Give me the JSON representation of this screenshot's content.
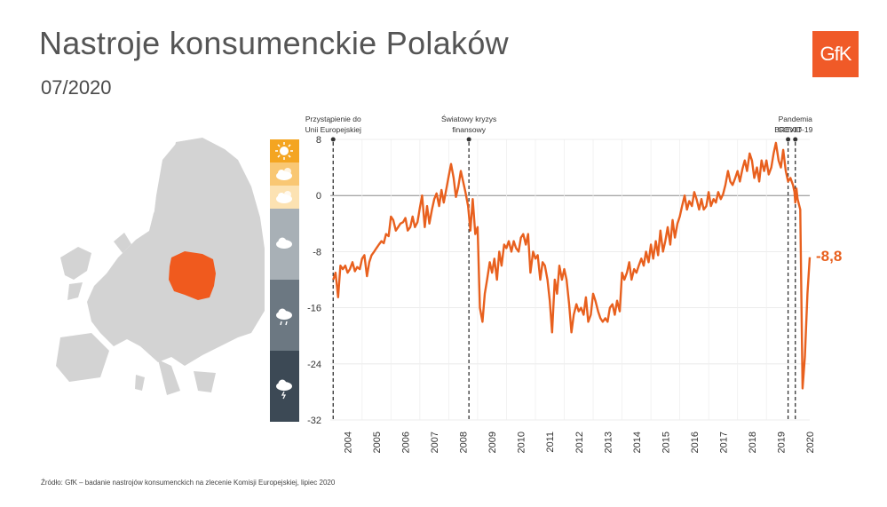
{
  "header": {
    "title": "Nastroje konsumenckie Polaków",
    "subtitle": "07/2020",
    "logo_text": "GfK"
  },
  "source": "Źródło: GfK – badanie nastrojów konsumenckich na zlecenie Komisji Europejskiej, lipiec 2020",
  "colors": {
    "line": "#e8601e",
    "poland": "#f05a1e",
    "europe": "#d3d3d3",
    "accent": "#f05a28"
  },
  "mood_scale": [
    {
      "icon": "sun-icon",
      "color": "#f4a521"
    },
    {
      "icon": "sun-cloud-icon",
      "color": "#f9c773"
    },
    {
      "icon": "partly-cloudy-icon",
      "color": "#fce2b2"
    },
    {
      "icon": "cloud-icon",
      "color": "#a8b0b6"
    },
    {
      "icon": "rain-cloud-icon",
      "color": "#6c7882"
    },
    {
      "icon": "storm-cloud-icon",
      "color": "#3c4955"
    }
  ],
  "final_value_label": "-8,8",
  "chart_data": {
    "type": "line",
    "title": "Nastroje konsumenckie Polaków",
    "ylim": [
      -32,
      8
    ],
    "yticks": [
      "8",
      "0",
      "-8",
      "-16",
      "-24",
      "-32"
    ],
    "xlim": [
      2003.9,
      2020.5
    ],
    "xticks": [
      "2004",
      "2005",
      "2006",
      "2007",
      "2008",
      "2009",
      "2010",
      "2011",
      "2012",
      "2013",
      "2014",
      "2015",
      "2016",
      "2017",
      "2018",
      "2019",
      "2020"
    ],
    "grid": true,
    "events": [
      {
        "x": 2004.0,
        "label": [
          "Przystąpienie do",
          "Unii Europejskiej"
        ]
      },
      {
        "x": 2008.7,
        "label": [
          "Światowy kryzys",
          "finansowy"
        ]
      },
      {
        "x": 2019.75,
        "label": [
          "BREXIT"
        ]
      },
      {
        "x": 2020.0,
        "label": [
          "Pandemia",
          "COVID-19"
        ]
      }
    ],
    "series": [
      {
        "values": [
          [
            2004.0,
            -12
          ],
          [
            2004.08,
            -11
          ],
          [
            2004.17,
            -14.5
          ],
          [
            2004.25,
            -10
          ],
          [
            2004.33,
            -10.5
          ],
          [
            2004.42,
            -10
          ],
          [
            2004.5,
            -11
          ],
          [
            2004.58,
            -10.5
          ],
          [
            2004.67,
            -9.5
          ],
          [
            2004.75,
            -10.8
          ],
          [
            2004.83,
            -10.2
          ],
          [
            2004.92,
            -10.5
          ],
          [
            2005.0,
            -9
          ],
          [
            2005.08,
            -8.5
          ],
          [
            2005.17,
            -11.5
          ],
          [
            2005.25,
            -9.5
          ],
          [
            2005.33,
            -8.5
          ],
          [
            2005.42,
            -8
          ],
          [
            2005.5,
            -7.5
          ],
          [
            2005.58,
            -7
          ],
          [
            2005.67,
            -6.5
          ],
          [
            2005.75,
            -6.8
          ],
          [
            2005.83,
            -5.5
          ],
          [
            2005.92,
            -5.8
          ],
          [
            2006.0,
            -3
          ],
          [
            2006.08,
            -3.5
          ],
          [
            2006.17,
            -5
          ],
          [
            2006.25,
            -4.5
          ],
          [
            2006.33,
            -4
          ],
          [
            2006.42,
            -3.8
          ],
          [
            2006.5,
            -3.2
          ],
          [
            2006.58,
            -5
          ],
          [
            2006.67,
            -4.5
          ],
          [
            2006.75,
            -3
          ],
          [
            2006.83,
            -4.5
          ],
          [
            2006.92,
            -3.8
          ],
          [
            2007.0,
            -1.8
          ],
          [
            2007.08,
            0
          ],
          [
            2007.17,
            -4.5
          ],
          [
            2007.25,
            -1.5
          ],
          [
            2007.33,
            -4
          ],
          [
            2007.42,
            -2
          ],
          [
            2007.5,
            -0.5
          ],
          [
            2007.58,
            0.3
          ],
          [
            2007.67,
            -1.5
          ],
          [
            2007.75,
            0.8
          ],
          [
            2007.83,
            -1
          ],
          [
            2007.92,
            1
          ],
          [
            2008.0,
            2.8
          ],
          [
            2008.08,
            4.5
          ],
          [
            2008.17,
            2.5
          ],
          [
            2008.25,
            -0.2
          ],
          [
            2008.33,
            1.2
          ],
          [
            2008.42,
            3.5
          ],
          [
            2008.5,
            2
          ],
          [
            2008.58,
            0.5
          ],
          [
            2008.67,
            -1.5
          ],
          [
            2008.75,
            -5
          ],
          [
            2008.83,
            -0.5
          ],
          [
            2008.92,
            -5.5
          ],
          [
            2009.0,
            -4.5
          ],
          [
            2009.08,
            -16
          ],
          [
            2009.17,
            -18
          ],
          [
            2009.25,
            -14
          ],
          [
            2009.33,
            -12
          ],
          [
            2009.42,
            -9.5
          ],
          [
            2009.5,
            -11
          ],
          [
            2009.58,
            -9
          ],
          [
            2009.67,
            -12
          ],
          [
            2009.75,
            -8
          ],
          [
            2009.83,
            -10
          ],
          [
            2009.92,
            -7
          ],
          [
            2010.0,
            -7.5
          ],
          [
            2010.08,
            -6.5
          ],
          [
            2010.17,
            -8
          ],
          [
            2010.25,
            -6.5
          ],
          [
            2010.33,
            -7.5
          ],
          [
            2010.42,
            -8
          ],
          [
            2010.5,
            -6
          ],
          [
            2010.58,
            -5.5
          ],
          [
            2010.67,
            -7
          ],
          [
            2010.75,
            -5.5
          ],
          [
            2010.83,
            -11
          ],
          [
            2010.92,
            -8
          ],
          [
            2011.0,
            -9
          ],
          [
            2011.08,
            -8.5
          ],
          [
            2011.17,
            -12
          ],
          [
            2011.25,
            -9.5
          ],
          [
            2011.33,
            -10
          ],
          [
            2011.42,
            -12
          ],
          [
            2011.5,
            -15
          ],
          [
            2011.58,
            -19.5
          ],
          [
            2011.67,
            -12
          ],
          [
            2011.75,
            -14
          ],
          [
            2011.83,
            -10
          ],
          [
            2011.92,
            -12
          ],
          [
            2012.0,
            -10.5
          ],
          [
            2012.08,
            -12
          ],
          [
            2012.17,
            -15.5
          ],
          [
            2012.25,
            -19.5
          ],
          [
            2012.33,
            -17
          ],
          [
            2012.42,
            -15.5
          ],
          [
            2012.5,
            -16.5
          ],
          [
            2012.58,
            -16
          ],
          [
            2012.67,
            -17
          ],
          [
            2012.75,
            -14.5
          ],
          [
            2012.83,
            -18
          ],
          [
            2012.92,
            -17
          ],
          [
            2013.0,
            -14
          ],
          [
            2013.08,
            -15
          ],
          [
            2013.17,
            -16.5
          ],
          [
            2013.25,
            -17.5
          ],
          [
            2013.33,
            -18
          ],
          [
            2013.42,
            -17.5
          ],
          [
            2013.5,
            -18
          ],
          [
            2013.58,
            -16
          ],
          [
            2013.67,
            -15.5
          ],
          [
            2013.75,
            -17
          ],
          [
            2013.83,
            -15
          ],
          [
            2013.92,
            -16.5
          ],
          [
            2014.0,
            -11
          ],
          [
            2014.08,
            -12
          ],
          [
            2014.17,
            -11
          ],
          [
            2014.25,
            -9.5
          ],
          [
            2014.33,
            -12
          ],
          [
            2014.42,
            -10.5
          ],
          [
            2014.5,
            -11
          ],
          [
            2014.58,
            -10
          ],
          [
            2014.67,
            -9
          ],
          [
            2014.75,
            -10
          ],
          [
            2014.83,
            -8
          ],
          [
            2014.92,
            -9.5
          ],
          [
            2015.0,
            -7
          ],
          [
            2015.08,
            -9
          ],
          [
            2015.17,
            -6.5
          ],
          [
            2015.25,
            -8.5
          ],
          [
            2015.33,
            -5
          ],
          [
            2015.42,
            -8
          ],
          [
            2015.5,
            -6.5
          ],
          [
            2015.58,
            -4.5
          ],
          [
            2015.67,
            -7
          ],
          [
            2015.75,
            -3.5
          ],
          [
            2015.83,
            -6
          ],
          [
            2015.92,
            -4
          ],
          [
            2016.0,
            -3
          ],
          [
            2016.08,
            -1.5
          ],
          [
            2016.17,
            0
          ],
          [
            2016.25,
            -2
          ],
          [
            2016.33,
            -0.8
          ],
          [
            2016.42,
            -1.5
          ],
          [
            2016.5,
            0.5
          ],
          [
            2016.58,
            -0.5
          ],
          [
            2016.67,
            -2
          ],
          [
            2016.75,
            -0.5
          ],
          [
            2016.83,
            -2
          ],
          [
            2016.92,
            -1.5
          ],
          [
            2017.0,
            0.5
          ],
          [
            2017.08,
            -1.5
          ],
          [
            2017.17,
            -0.5
          ],
          [
            2017.25,
            -1
          ],
          [
            2017.33,
            0.5
          ],
          [
            2017.42,
            -0.5
          ],
          [
            2017.5,
            0.2
          ],
          [
            2017.58,
            1.5
          ],
          [
            2017.67,
            3.5
          ],
          [
            2017.75,
            2
          ],
          [
            2017.83,
            1.5
          ],
          [
            2017.92,
            2.5
          ],
          [
            2018.0,
            3.5
          ],
          [
            2018.08,
            2
          ],
          [
            2018.17,
            3.8
          ],
          [
            2018.25,
            5
          ],
          [
            2018.33,
            3.5
          ],
          [
            2018.42,
            6
          ],
          [
            2018.5,
            5
          ],
          [
            2018.58,
            2.5
          ],
          [
            2018.67,
            4
          ],
          [
            2018.75,
            2
          ],
          [
            2018.83,
            5
          ],
          [
            2018.92,
            3.5
          ],
          [
            2019.0,
            5
          ],
          [
            2019.08,
            3
          ],
          [
            2019.17,
            4
          ],
          [
            2019.25,
            6
          ],
          [
            2019.33,
            7.5
          ],
          [
            2019.42,
            5
          ],
          [
            2019.5,
            4
          ],
          [
            2019.58,
            6.5
          ],
          [
            2019.67,
            3.5
          ],
          [
            2019.75,
            2
          ],
          [
            2019.83,
            2.5
          ],
          [
            2019.92,
            1.5
          ],
          [
            2019.97,
            0.5
          ],
          [
            2020.0,
            -1
          ],
          [
            2020.04,
            1
          ],
          [
            2020.08,
            -0.5
          ],
          [
            2020.17,
            -2
          ],
          [
            2020.25,
            -27.5
          ],
          [
            2020.33,
            -23
          ],
          [
            2020.42,
            -14
          ],
          [
            2020.5,
            -8.8
          ]
        ]
      }
    ]
  }
}
